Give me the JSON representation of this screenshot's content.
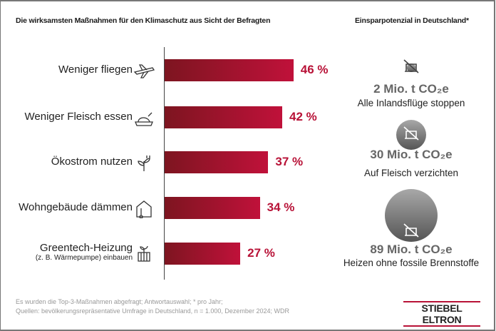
{
  "chart_data": {
    "type": "bar",
    "orientation": "horizontal",
    "title": "Die wirksamsten Maßnahmen für den Klimaschutz aus Sicht der Befragten",
    "categories": [
      "Weniger fliegen",
      "Weniger Fleisch essen",
      "Ökostrom nutzen",
      "Wohngebäude dämmen",
      "Greentech-Heizung"
    ],
    "category_sublabels": [
      "",
      "",
      "",
      "",
      "(z. B. Wärmepumpe) einbauen"
    ],
    "category_icons": [
      "airplane-icon",
      "roast-chicken-icon",
      "plant-plug-icon",
      "insulated-house-icon",
      "heat-pump-icon"
    ],
    "values": [
      46,
      42,
      37,
      34,
      27
    ],
    "value_labels": [
      "46 %",
      "42 %",
      "37 %",
      "34 %",
      "27 %"
    ],
    "unit": "%",
    "xlim": [
      0,
      100
    ],
    "bar_color": "#b81237",
    "bar_color_dark": "#7d1520"
  },
  "savings": {
    "title": "Einsparpotenzial in Deutschland*",
    "items": [
      {
        "value": 2,
        "amount": "2 Mio. t CO₂e",
        "label": "Alle Inlandsflüge stoppen",
        "icon": "crossed-airplane-icon"
      },
      {
        "value": 30,
        "amount": "30 Mio. t CO₂e",
        "label": "Auf Fleisch verzichten",
        "icon": "crossed-chicken-icon"
      },
      {
        "value": 89,
        "amount": "89 Mio. t CO₂e",
        "label": "Heizen ohne fossile Brennstoffe",
        "icon": "crossed-coal-icon"
      }
    ],
    "circle_color": "#666666"
  },
  "footer": {
    "line1": "Es wurden die Top-3-Maßnahmen abgefragt; Antwortauswahl; * pro Jahr;",
    "line2": "Quellen: bevölkerungsrepräsentative Umfrage in Deutschland, n = 1.000, Dezember 2024; WDR"
  },
  "logo": "STIEBEL ELTRON"
}
